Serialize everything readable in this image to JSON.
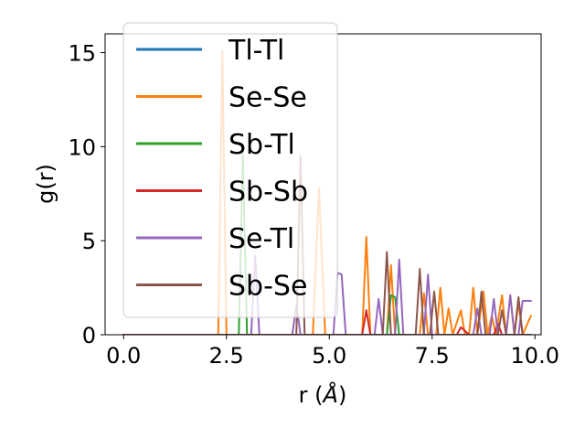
{
  "chart_data": {
    "type": "line",
    "xlabel": "r (",
    "xlabel_unit": "Å",
    "xlabel_close": ")",
    "ylabel": "g(r)",
    "xlim": [
      -0.45,
      10.15
    ],
    "ylim": [
      0,
      16
    ],
    "xticks": [
      0.0,
      2.5,
      5.0,
      7.5,
      10.0
    ],
    "xtick_labels": [
      "0.0",
      "2.5",
      "5.0",
      "7.5",
      "10.0"
    ],
    "yticks": [
      0,
      5,
      10,
      15
    ],
    "ytick_labels": [
      "0",
      "5",
      "10",
      "15"
    ],
    "grid": false,
    "legend_position": "upper-left",
    "series": [
      {
        "name": "Tl-Tl",
        "color": "#1f77b4",
        "points": [
          [
            0,
            0
          ],
          [
            2.3,
            0
          ],
          [
            2.45,
            0
          ],
          [
            9.9,
            0
          ]
        ]
      },
      {
        "name": "Se-Se",
        "color": "#ff7f0e",
        "points": [
          [
            0,
            0
          ],
          [
            2.3,
            0
          ],
          [
            2.4,
            15.1
          ],
          [
            2.5,
            0
          ],
          [
            4.6,
            0
          ],
          [
            4.75,
            7.8
          ],
          [
            4.9,
            0
          ],
          [
            5.8,
            0
          ],
          [
            5.9,
            5.2
          ],
          [
            6.0,
            0
          ],
          [
            6.4,
            0
          ],
          [
            6.5,
            3.7
          ],
          [
            6.6,
            0
          ],
          [
            7.2,
            0
          ],
          [
            7.3,
            2.2
          ],
          [
            7.4,
            0
          ],
          [
            7.6,
            0
          ],
          [
            7.7,
            2.5
          ],
          [
            7.8,
            0
          ],
          [
            7.9,
            1.4
          ],
          [
            8.0,
            0
          ],
          [
            8.2,
            1.3
          ],
          [
            8.3,
            0
          ],
          [
            8.4,
            0
          ],
          [
            8.5,
            2.5
          ],
          [
            8.6,
            0
          ],
          [
            8.75,
            2.3
          ],
          [
            8.85,
            0
          ],
          [
            8.95,
            1.0
          ],
          [
            9.05,
            0
          ],
          [
            9.2,
            2.1
          ],
          [
            9.3,
            0
          ],
          [
            9.4,
            2.1
          ],
          [
            9.5,
            0
          ],
          [
            9.6,
            1.7
          ],
          [
            9.7,
            0
          ],
          [
            9.8,
            0.5
          ],
          [
            9.9,
            1.0
          ]
        ]
      },
      {
        "name": "Sb-Tl",
        "color": "#2ca02c",
        "points": [
          [
            0,
            0
          ],
          [
            2.8,
            0
          ],
          [
            2.9,
            9.6
          ],
          [
            3.0,
            0
          ],
          [
            6.4,
            0
          ],
          [
            6.5,
            2.1
          ],
          [
            6.6,
            2.0
          ],
          [
            6.7,
            0
          ],
          [
            9.9,
            0
          ]
        ]
      },
      {
        "name": "Sb-Sb",
        "color": "#d62728",
        "points": [
          [
            0,
            0
          ],
          [
            5.8,
            0
          ],
          [
            5.9,
            1.3
          ],
          [
            6.0,
            0
          ],
          [
            8.1,
            0
          ],
          [
            8.2,
            0.4
          ],
          [
            8.3,
            0.2
          ],
          [
            8.4,
            0
          ],
          [
            9.0,
            0
          ],
          [
            9.1,
            0.6
          ],
          [
            9.2,
            0
          ],
          [
            9.9,
            0
          ]
        ]
      },
      {
        "name": "Se-Tl",
        "color": "#9467bd",
        "points": [
          [
            0,
            0
          ],
          [
            3.1,
            0
          ],
          [
            3.2,
            4.2
          ],
          [
            3.3,
            0
          ],
          [
            4.1,
            0
          ],
          [
            4.2,
            1.6
          ],
          [
            4.3,
            0
          ],
          [
            5.1,
            0
          ],
          [
            5.2,
            3.3
          ],
          [
            5.3,
            3.2
          ],
          [
            5.4,
            0
          ],
          [
            6.1,
            0
          ],
          [
            6.2,
            1.9
          ],
          [
            6.3,
            0
          ],
          [
            6.6,
            0
          ],
          [
            6.7,
            4.0
          ],
          [
            6.8,
            0
          ],
          [
            7.3,
            0
          ],
          [
            7.4,
            3.2
          ],
          [
            7.5,
            0
          ],
          [
            8.5,
            0
          ],
          [
            8.6,
            1.4
          ],
          [
            8.7,
            0
          ],
          [
            8.9,
            0
          ],
          [
            9.0,
            1.9
          ],
          [
            9.1,
            0
          ],
          [
            9.3,
            0
          ],
          [
            9.4,
            2.1
          ],
          [
            9.5,
            0
          ],
          [
            9.6,
            0
          ],
          [
            9.7,
            1.8
          ],
          [
            9.9,
            1.8
          ]
        ]
      },
      {
        "name": "Sb-Se",
        "color": "#8c564b",
        "points": [
          [
            0,
            0
          ],
          [
            4.2,
            0
          ],
          [
            4.3,
            9.5
          ],
          [
            4.4,
            0
          ],
          [
            6.3,
            0
          ],
          [
            6.4,
            4.4
          ],
          [
            6.5,
            0
          ],
          [
            7.1,
            0
          ],
          [
            7.2,
            3.5
          ],
          [
            7.3,
            0
          ],
          [
            7.45,
            0
          ],
          [
            7.55,
            2.3
          ],
          [
            7.65,
            0
          ],
          [
            8.6,
            0
          ],
          [
            8.7,
            2.3
          ],
          [
            8.8,
            0
          ],
          [
            9.1,
            0
          ],
          [
            9.2,
            1.3
          ],
          [
            9.3,
            0
          ],
          [
            9.5,
            0
          ],
          [
            9.6,
            2.0
          ],
          [
            9.7,
            0
          ],
          [
            9.9,
            0
          ]
        ]
      }
    ]
  }
}
